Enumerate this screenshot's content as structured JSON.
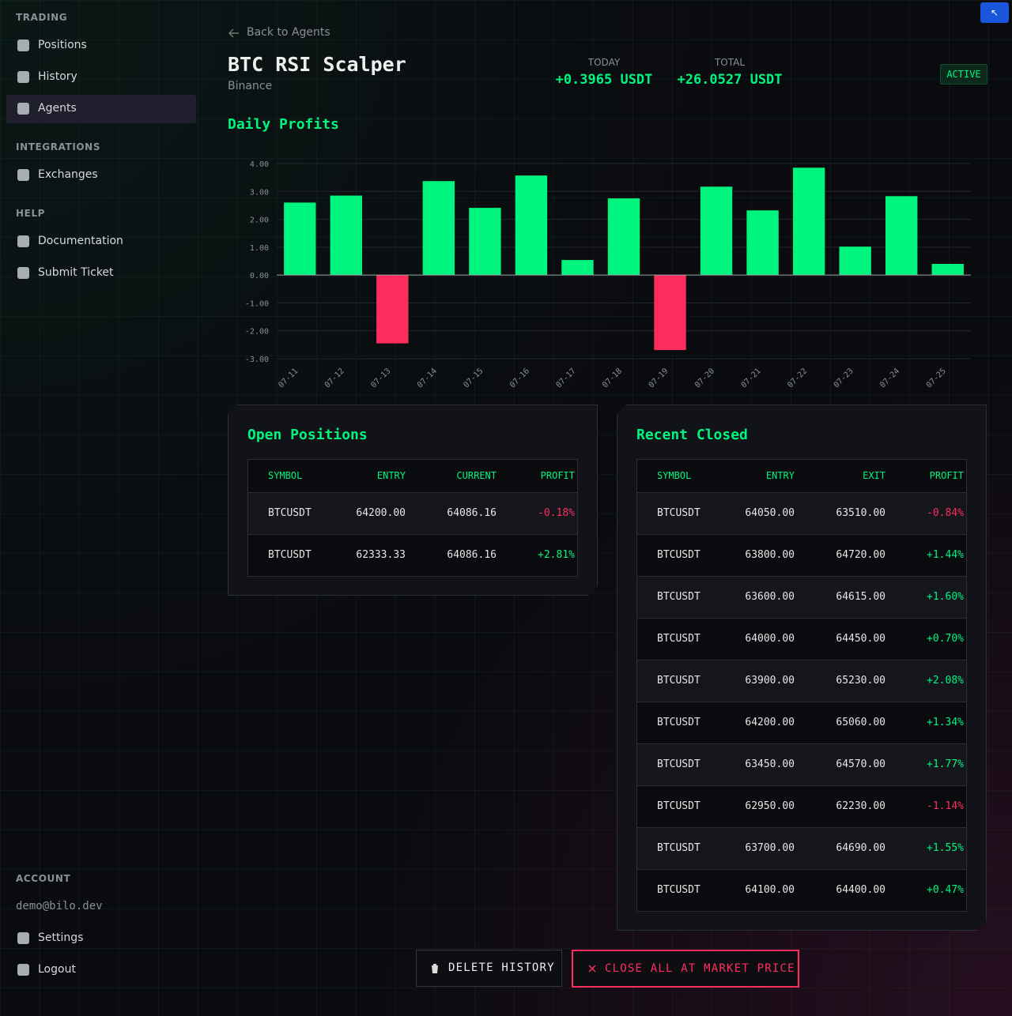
{
  "sidebar": {
    "sections": [
      {
        "title": "TRADING",
        "items": [
          {
            "label": "Positions"
          },
          {
            "label": "History"
          },
          {
            "label": "Agents",
            "active": true
          }
        ]
      },
      {
        "title": "INTEGRATIONS",
        "items": [
          {
            "label": "Exchanges"
          }
        ]
      },
      {
        "title": "HELP",
        "items": [
          {
            "label": "Documentation"
          },
          {
            "label": "Submit Ticket"
          }
        ]
      }
    ],
    "account": {
      "title": "ACCOUNT",
      "email": "demo@bilo.dev",
      "items": [
        {
          "label": "Settings"
        },
        {
          "label": "Logout"
        }
      ]
    }
  },
  "corner_button": "↖",
  "header": {
    "back": "Back to Agents",
    "title": "BTC RSI Scalper",
    "exchange": "Binance",
    "stats": [
      {
        "label": "TODAY",
        "value": "+0.3965 USDT"
      },
      {
        "label": "TOTAL",
        "value": "+26.0527 USDT"
      }
    ],
    "status": "ACTIVE"
  },
  "chart_data": {
    "type": "bar",
    "title": "Daily Profits",
    "categories": [
      "07-11",
      "07-12",
      "07-13",
      "07-14",
      "07-15",
      "07-16",
      "07-17",
      "07-18",
      "07-19",
      "07-20",
      "07-21",
      "07-22",
      "07-23",
      "07-24",
      "07-25"
    ],
    "values": [
      2.6,
      2.85,
      -2.45,
      3.37,
      2.41,
      3.57,
      0.54,
      2.75,
      -2.69,
      3.17,
      2.32,
      3.85,
      1.02,
      2.83,
      0.4
    ],
    "color": "#00f57f",
    "negative_color": "#ff2d5e",
    "ylim": [
      -3,
      4
    ],
    "yticks": [
      {
        "value": 4,
        "label": "4.00"
      },
      {
        "value": 3,
        "label": "3.00"
      },
      {
        "value": 2,
        "label": "2.00"
      },
      {
        "value": 1,
        "label": "1.00"
      },
      {
        "value": 0,
        "label": "0.00"
      },
      {
        "value": -1,
        "label": "-1.00"
      },
      {
        "value": -2,
        "label": "-2.00"
      },
      {
        "value": -3,
        "label": "-3.00"
      }
    ],
    "grid": true
  },
  "open_positions": {
    "title": "Open Positions",
    "columns": [
      "SYMBOL",
      "ENTRY",
      "CURRENT",
      "PROFIT"
    ],
    "rows": [
      [
        "BTCUSDT",
        "64200.00",
        "64086.16",
        "-0.18%"
      ],
      [
        "BTCUSDT",
        "62333.33",
        "64086.16",
        "+2.81%"
      ]
    ]
  },
  "recent_closed": {
    "title": "Recent Closed",
    "columns": [
      "SYMBOL",
      "ENTRY",
      "EXIT",
      "PROFIT"
    ],
    "rows": [
      [
        "BTCUSDT",
        "64050.00",
        "63510.00",
        "-0.84%"
      ],
      [
        "BTCUSDT",
        "63800.00",
        "64720.00",
        "+1.44%"
      ],
      [
        "BTCUSDT",
        "63600.00",
        "64615.00",
        "+1.60%"
      ],
      [
        "BTCUSDT",
        "64000.00",
        "64450.00",
        "+0.70%"
      ],
      [
        "BTCUSDT",
        "63900.00",
        "65230.00",
        "+2.08%"
      ],
      [
        "BTCUSDT",
        "64200.00",
        "65060.00",
        "+1.34%"
      ],
      [
        "BTCUSDT",
        "63450.00",
        "64570.00",
        "+1.77%"
      ],
      [
        "BTCUSDT",
        "62950.00",
        "62230.00",
        "-1.14%"
      ],
      [
        "BTCUSDT",
        "63700.00",
        "64690.00",
        "+1.55%"
      ],
      [
        "BTCUSDT",
        "64100.00",
        "64400.00",
        "+0.47%"
      ]
    ]
  },
  "buttons": {
    "delete": "DELETE HISTORY",
    "close_all": "CLOSE ALL AT MARKET PRICE"
  }
}
